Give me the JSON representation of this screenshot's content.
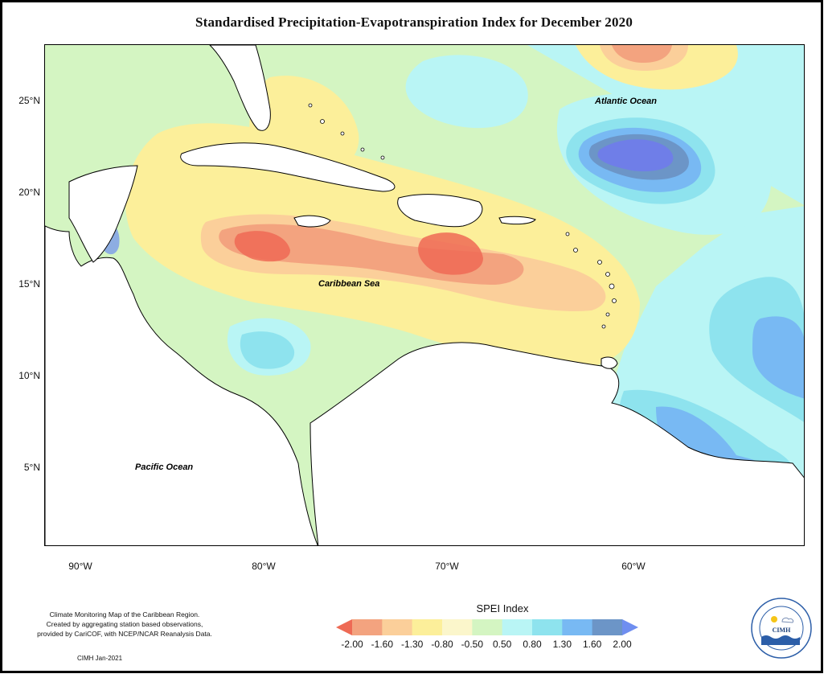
{
  "title": "Standardised Precipitation-Evapotranspiration Index for December 2020",
  "y_axis_labels": [
    "25°N",
    "20°N",
    "15°N",
    "10°N",
    "5°N"
  ],
  "x_axis_labels": [
    "90°W",
    "80°W",
    "70°W",
    "60°W"
  ],
  "ocean_labels": {
    "atlantic": "Atlantic Ocean",
    "caribbean": "Caribbean Sea",
    "pacific": "Pacific Ocean"
  },
  "credits": {
    "line1": "Climate Monitoring Map of the Caribbean Region.",
    "line2": "Created by aggregating station based observations,",
    "line3": "provided by CariCOF, with NCEP/NCAR Reanalysis Data.",
    "date": "CIMH Jan-2021"
  },
  "legend": {
    "title": "SPEI Index",
    "ticks": [
      "-2.00",
      "-1.60",
      "-1.30",
      "-0.80",
      "-0.50",
      "0.50",
      "0.80",
      "1.30",
      "1.60",
      "2.00"
    ],
    "colors": [
      "#ee6a55",
      "#f3a37f",
      "#fbcf9a",
      "#fcef9a",
      "#fbf6cb",
      "#d4f5c2",
      "#b9f5f5",
      "#8ee3ee",
      "#78b9f3",
      "#6c95c7",
      "#6f8ef0"
    ]
  },
  "logo": {
    "name": "CIMH"
  }
}
